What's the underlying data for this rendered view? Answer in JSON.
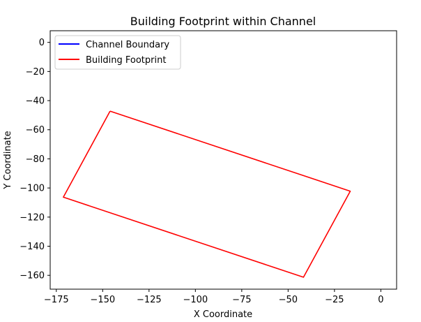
{
  "chart_data": {
    "type": "line",
    "title": "Building Footprint within Channel",
    "xlabel": "X Coordinate",
    "ylabel": "Y Coordinate",
    "xlim": [
      -178.3,
      8.5
    ],
    "ylim": [
      -169.5,
      8.0
    ],
    "xticks": [
      -175,
      -150,
      -125,
      -100,
      -75,
      -50,
      -25,
      0
    ],
    "yticks": [
      0,
      -20,
      -40,
      -60,
      -80,
      -100,
      -120,
      -140,
      -160
    ],
    "xtick_labels": [
      "−175",
      "−150",
      "−125",
      "−100",
      "−75",
      "−50",
      "−25",
      "0"
    ],
    "ytick_labels": [
      "0",
      "−20",
      "−40",
      "−60",
      "−80",
      "−100",
      "−120",
      "−140",
      "−160"
    ],
    "grid": false,
    "legend_position": "upper-left",
    "series": [
      {
        "name": "Channel Boundary",
        "color": "#0000ff",
        "x": [],
        "y": []
      },
      {
        "name": "Building Footprint",
        "color": "#ff0000",
        "x": [
          -146,
          -16.5,
          -41.7,
          -171.2,
          -146
        ],
        "y": [
          -47.2,
          -102.2,
          -161.3,
          -106.3,
          -47.2
        ]
      }
    ]
  }
}
